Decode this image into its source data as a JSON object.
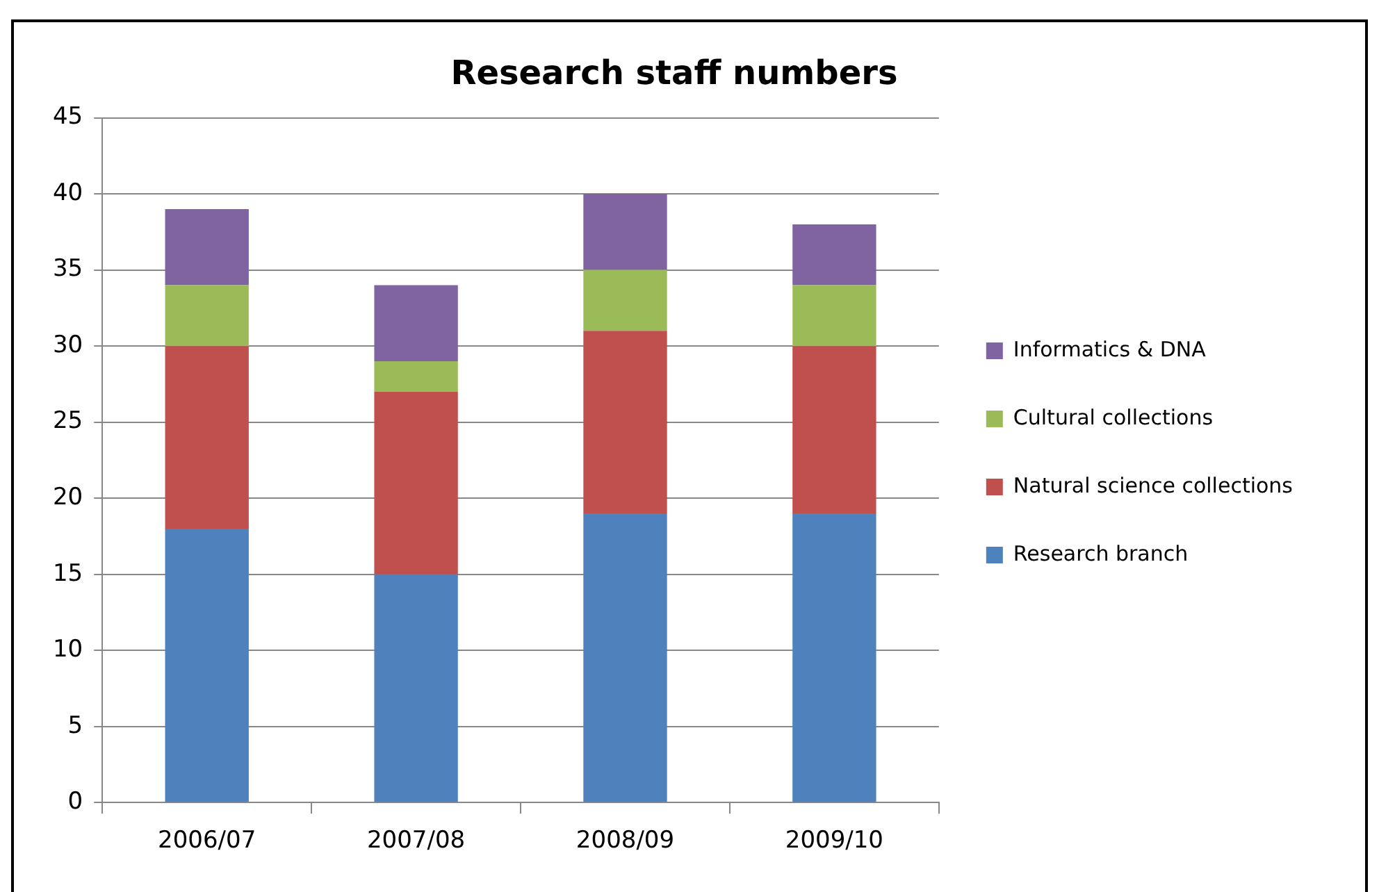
{
  "chart_data": {
    "type": "bar",
    "title": "Research staff numbers",
    "stacked": true,
    "categories": [
      "2006/07",
      "2007/08",
      "2008/09",
      "2009/10"
    ],
    "series": [
      {
        "name": "Research branch",
        "color": "#4f81bd",
        "values": [
          18,
          15,
          19,
          19
        ]
      },
      {
        "name": "Natural science collections",
        "color": "#c0504d",
        "values": [
          12,
          12,
          12,
          11
        ]
      },
      {
        "name": "Cultural collections",
        "color": "#9bbb59",
        "values": [
          4,
          2,
          4,
          4
        ]
      },
      {
        "name": "Informatics & DNA",
        "color": "#8064a2",
        "values": [
          5,
          5,
          5,
          4
        ]
      }
    ],
    "ylim": [
      0,
      45
    ],
    "yticks": [
      0,
      5,
      10,
      15,
      20,
      25,
      30,
      35,
      40,
      45
    ],
    "grid": "y",
    "legend": "right"
  }
}
